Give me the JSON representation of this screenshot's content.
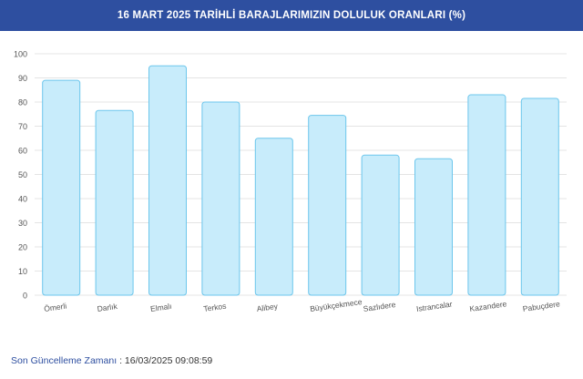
{
  "header": {
    "title": "16 MART 2025 TARİHLİ BARAJLARIMIZIN DOLULUK ORANLARI (%)"
  },
  "footer": {
    "label": "Son Güncelleme Zamanı",
    "separator": " : ",
    "value": "16/03/2025 09:08:59"
  },
  "colors": {
    "header_bg": "#2e4fa0",
    "bar_fill": "#c8ecfb",
    "bar_stroke": "#6cc6ec",
    "grid": "#e4e4e4"
  },
  "chart_data": {
    "type": "bar",
    "title": "16 MART 2025 TARİHLİ BARAJLARIMIZIN DOLULUK ORANLARI (%)",
    "categories": [
      "Ömerli",
      "Darlık",
      "Elmalı",
      "Terkos",
      "Alibey",
      "Büyükçekmece",
      "Sazlıdere",
      "Istrancalar",
      "Kazandere",
      "Pabuçdere"
    ],
    "values": [
      89,
      76.5,
      95,
      80,
      65,
      74.5,
      58,
      56.5,
      83,
      81.5
    ],
    "yticks": [
      0,
      10,
      20,
      30,
      40,
      50,
      60,
      70,
      80,
      90,
      100
    ],
    "ylim": [
      0,
      100
    ],
    "grid": true,
    "legend": "none"
  }
}
